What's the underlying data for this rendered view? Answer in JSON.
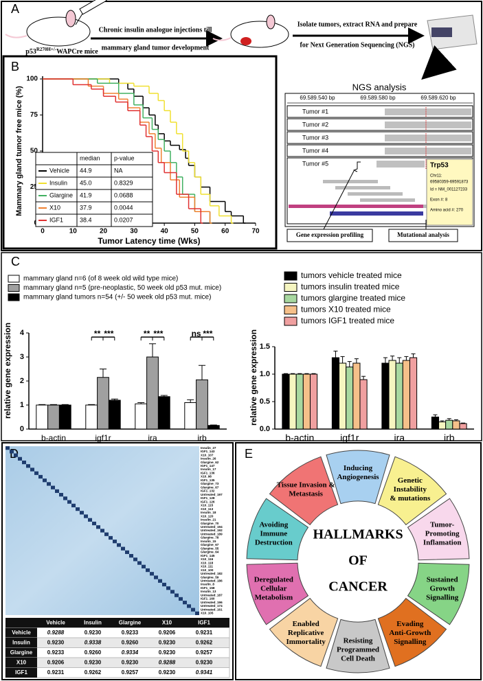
{
  "panel_labels": [
    "A",
    "B",
    "C",
    "D",
    "E"
  ],
  "workflow": {
    "mouse_label": {
      "base": "p53",
      "sup": "R270H+/-",
      "rest": "WAPCre mice"
    },
    "step1": [
      "Chronic insulin analogue injections till",
      "mammary gland tumor development"
    ],
    "step2": [
      "Isolate tumors, extract RNA and prepare",
      "for Next Generation Sequencing (NGS)"
    ]
  },
  "ngs": {
    "title": "NGS analysis",
    "positions": [
      "69.589.540 bp",
      "69.589.580 bp",
      "69.589.620 bp"
    ],
    "tracks": [
      "Tumor #1",
      "Tumor #2",
      "Tumor #3",
      "Tumor #4",
      "Tumor #5"
    ],
    "gene_box": {
      "title": "Trp53",
      "lines": [
        "Chr11:",
        "69580359-69591873",
        "Id = NM_001127233",
        "Exon #: 8",
        "Amino acid #: 270"
      ]
    },
    "outputs": [
      "Gene expression profiling",
      "Mutational analysis"
    ]
  },
  "chart_data": [
    {
      "type": "line",
      "step": true,
      "xlabel": "Tumor Latency time (Wks)",
      "ylabel": "Mammary gland tumor free mice (%)",
      "xlim": [
        0,
        70
      ],
      "xticks": [
        0,
        10,
        20,
        30,
        40,
        50,
        60,
        70
      ],
      "ylim": [
        0,
        100
      ],
      "yticks": [
        0,
        25,
        50,
        75,
        100
      ],
      "legend_columns": [
        "median",
        "p-value"
      ],
      "series": [
        {
          "name": "Vehicle",
          "color": "#000000",
          "median": "44.9",
          "p_value": "NA",
          "x": [
            0,
            25,
            28,
            30,
            33,
            35,
            37,
            38,
            40,
            42,
            45,
            47,
            48,
            50,
            52,
            55,
            60,
            62,
            66
          ],
          "values": [
            100,
            97,
            93,
            88,
            80,
            75,
            68,
            62,
            57,
            54,
            51,
            45,
            40,
            32,
            25,
            15,
            8,
            5,
            0
          ]
        },
        {
          "name": "Insulin",
          "color": "#f0e030",
          "median": "45.0",
          "p_value": "0.8329",
          "x": [
            0,
            22,
            30,
            35,
            38,
            40,
            42,
            44,
            46,
            48,
            50,
            52,
            55,
            58,
            62
          ],
          "values": [
            100,
            97,
            95,
            90,
            85,
            78,
            70,
            62,
            50,
            42,
            32,
            20,
            12,
            5,
            0
          ]
        },
        {
          "name": "Glargine",
          "color": "#40b060",
          "median": "41.9",
          "p_value": "0.0688",
          "x": [
            0,
            18,
            25,
            30,
            33,
            36,
            38,
            40,
            42,
            44,
            46,
            50,
            55
          ],
          "values": [
            100,
            97,
            90,
            82,
            73,
            65,
            58,
            50,
            42,
            32,
            20,
            8,
            0
          ]
        },
        {
          "name": "X10",
          "color": "#f08030",
          "median": "37.9",
          "p_value": "0.0044",
          "x": [
            0,
            15,
            20,
            25,
            28,
            32,
            35,
            37,
            39,
            42,
            45,
            50,
            55
          ],
          "values": [
            100,
            95,
            90,
            86,
            80,
            70,
            62,
            52,
            42,
            30,
            18,
            8,
            0
          ]
        },
        {
          "name": "IGF1",
          "color": "#e03030",
          "median": "38.4",
          "p_value": "0.0207",
          "x": [
            0,
            10,
            16,
            20,
            24,
            28,
            32,
            34,
            36,
            38,
            40,
            44,
            48,
            52
          ],
          "values": [
            100,
            96,
            93,
            88,
            84,
            78,
            68,
            60,
            50,
            42,
            35,
            20,
            10,
            0
          ]
        }
      ]
    },
    {
      "type": "bar",
      "ylabel": "relative gene expression",
      "categories": [
        "b-actin",
        "igf1r",
        "ira",
        "irb"
      ],
      "ylim": [
        0,
        4
      ],
      "yticks": [
        0,
        1,
        2,
        3,
        4
      ],
      "annotations": [
        "**",
        "***",
        "**",
        "***",
        "ns",
        "***"
      ],
      "series": [
        {
          "name": "mammary gland n=6 (of 8 week old wild type mice)",
          "color": "#ffffff",
          "values": [
            1,
            1,
            1.05,
            1.1
          ],
          "errors": [
            0.02,
            0.02,
            0.05,
            0.12
          ]
        },
        {
          "name": "mammary gland n=5 (pre-neoplastic, 50 week old p53 mut. mice)",
          "color": "#a0a0a0",
          "values": [
            1,
            2.15,
            3.0,
            2.05
          ],
          "errors": [
            0.02,
            0.35,
            0.55,
            0.6
          ]
        },
        {
          "name": "mammary gland tumors n=54 (+/- 50 week old p53 mut. mice)",
          "color": "#000000",
          "values": [
            1,
            1.2,
            1.35,
            0.15
          ],
          "errors": [
            0.02,
            0.05,
            0.05,
            0.02
          ]
        }
      ]
    },
    {
      "type": "bar",
      "ylabel": "relative gene expression",
      "categories": [
        "b-actin",
        "igf1r",
        "ira",
        "irb"
      ],
      "ylim": [
        0,
        1.5
      ],
      "yticks": [
        {
          "value": 0,
          "label": "0.0"
        },
        {
          "value": 0.5,
          "label": "0.5"
        },
        {
          "value": 1,
          "label": "1.0"
        },
        {
          "value": 1.5,
          "label": "1.5"
        }
      ],
      "series": [
        {
          "name": "tumors vehicle treated mice",
          "color": "#000000",
          "values": [
            1,
            1.3,
            1.2,
            0.22
          ],
          "errors": [
            0.01,
            0.12,
            0.1,
            0.04
          ]
        },
        {
          "name": "tumors insulin treated mice",
          "color": "#f5f5c0",
          "values": [
            1,
            1.2,
            1.25,
            0.13
          ],
          "errors": [
            0.01,
            0.12,
            0.08,
            0.02
          ]
        },
        {
          "name": "tumors glargine treated mice",
          "color": "#a8d8a0",
          "values": [
            1,
            1.13,
            1.2,
            0.16
          ],
          "errors": [
            0.01,
            0.1,
            0.1,
            0.03
          ]
        },
        {
          "name": "tumors X10 treated mice",
          "color": "#f5c08a",
          "values": [
            1,
            1.2,
            1.25,
            0.15
          ],
          "errors": [
            0.01,
            0.08,
            0.07,
            0.02
          ]
        },
        {
          "name": "tumors IGF1 treated mice",
          "color": "#f0a0a0",
          "values": [
            1,
            0.9,
            1.3,
            0.1
          ],
          "errors": [
            0.01,
            0.06,
            0.07,
            0.01
          ]
        }
      ]
    }
  ],
  "heatmap": {
    "row_labels": [
      "Insulin_27",
      "IGF1_143",
      "X10_107",
      "Insulin_26",
      "Glargine_62",
      "IGF1_147",
      "Insulin_17",
      "IGF1_136",
      "X10_98",
      "IGF1_135",
      "Glargine_73",
      "Glargine_67",
      "IGF1_132",
      "Untreated_197",
      "IGF1_128",
      "IGF1_126",
      "X10_115",
      "X10_113",
      "Insulin_18",
      "X10_120",
      "Insulin_21",
      "Glargine_70",
      "Untreated_194",
      "Untreated_192",
      "Untreated_189",
      "Glargine_78",
      "Insulin_15",
      "Glargine_67",
      "Glargine_55",
      "Glargine_64",
      "IGF1_145",
      "X10_116",
      "X10_118",
      "X10_111",
      "X10_100",
      "Untreated_182",
      "Glargine_59",
      "Untreated_186",
      "Insulin_8",
      "IGF1_158",
      "Insulin_13",
      "Untreated_187",
      "IGF1_160",
      "Untreated_196",
      "Untreated_174",
      "Untreated_161",
      "X10_105"
    ],
    "table": {
      "header": [
        "Vehicle",
        "Insulin",
        "Glargine",
        "X10",
        "IGF1"
      ],
      "rows": [
        [
          "Vehicle",
          "0.9288",
          "0.9230",
          "0.9233",
          "0.9206",
          "0.9231"
        ],
        [
          "Insulin",
          "0.9230",
          "0.9338",
          "0.9260",
          "0.9230",
          "0.9262"
        ],
        [
          "Glargine",
          "0.9233",
          "0.9260",
          "0.9334",
          "0.9230",
          "0.9257"
        ],
        [
          "X10",
          "0.9206",
          "0.9230",
          "0.9230",
          "0.9288",
          "0.9230"
        ],
        [
          "IGF1",
          "0.9231",
          "0.9262",
          "0.9257",
          "0.9230",
          "0.9341"
        ]
      ]
    }
  },
  "hallmarks": {
    "center": [
      "HALLMARKS",
      "OF",
      "CANCER"
    ],
    "segments": [
      {
        "lines": [
          "Inducing",
          "Angiogenesis"
        ],
        "color": "#a8d0f0"
      },
      {
        "lines": [
          "Genetic",
          "Instability",
          "& mutations"
        ],
        "color": "#f8f090"
      },
      {
        "lines": [
          "Tumor-",
          "Promoting",
          "Inflamation"
        ],
        "color": "#f8d8ec"
      },
      {
        "lines": [
          "Sustained",
          "Growth",
          "Signalling"
        ],
        "color": "#86d486"
      },
      {
        "lines": [
          "Evading",
          "Anti-Growth",
          "Signalling"
        ],
        "color": "#e07020"
      },
      {
        "lines": [
          "Resisting",
          "Programmed",
          "Cell Death"
        ],
        "color": "#c8c8c8"
      },
      {
        "lines": [
          "Enabled",
          "Replicative",
          "Immortality"
        ],
        "color": "#f8d4a4"
      },
      {
        "lines": [
          "Deregulated",
          "Cellular",
          "Metabolism"
        ],
        "color": "#e070b0"
      },
      {
        "lines": [
          "Avoiding",
          "Immune",
          "Destruction"
        ],
        "color": "#68cccc"
      },
      {
        "lines": [
          "Tissue Invasion &",
          "Metastasis"
        ],
        "color": "#f07474"
      }
    ]
  }
}
